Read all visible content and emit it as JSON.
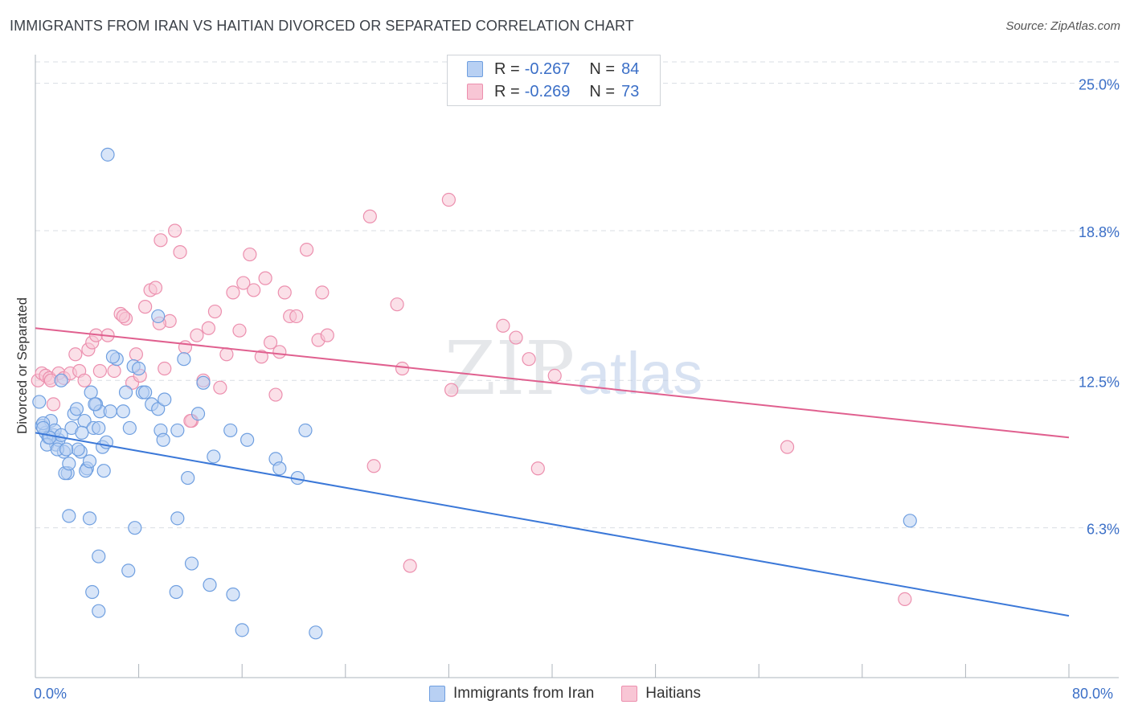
{
  "title": "IMMIGRANTS FROM IRAN VS HAITIAN DIVORCED OR SEPARATED CORRELATION CHART",
  "source": "Source: ZipAtlas.com",
  "watermark": {
    "zip": "ZIP",
    "atlas": "atlas"
  },
  "colors": {
    "blue": "#3b78d8",
    "blue_fill": "#b8d0f3",
    "blue_stroke": "#6f9fe0",
    "pink": "#e0608f",
    "pink_fill": "#f8c6d5",
    "pink_stroke": "#ec8fae",
    "axis_text": "#3b6fc7",
    "grid": "#d9dde3"
  },
  "legend_top": [
    {
      "r_label": "R =",
      "r_value": "-0.267",
      "n_label": "N =",
      "n_value": "84"
    },
    {
      "r_label": "R =",
      "r_value": "-0.269",
      "n_label": "N =",
      "n_value": "73"
    }
  ],
  "legend_bottom": [
    "Immigrants from Iran",
    "Haitians"
  ],
  "chart_data": {
    "type": "scatter",
    "title": "IMMIGRANTS FROM IRAN VS HAITIAN DIVORCED OR SEPARATED CORRELATION CHART",
    "xlabel": "",
    "ylabel": "Divorced or Separated",
    "xlim": [
      0,
      80
    ],
    "ylim": [
      0,
      25.9
    ],
    "x_tick_labels": [
      "0.0%",
      "80.0%"
    ],
    "y_ticks": [
      6.3,
      12.5,
      18.8,
      25.0
    ],
    "y_tick_labels": [
      "6.3%",
      "12.5%",
      "18.8%",
      "25.0%"
    ],
    "grid": true,
    "legend_position": "top-center",
    "series": [
      {
        "name": "Immigrants from Iran",
        "R": -0.267,
        "N": 84,
        "trend": {
          "x": [
            0,
            80
          ],
          "y": [
            10.3,
            2.6
          ]
        },
        "points": [
          [
            5.6,
            22
          ],
          [
            0.3,
            11.6
          ],
          [
            0.5,
            10.6
          ],
          [
            0.8,
            10.3
          ],
          [
            1.0,
            10.1
          ],
          [
            1.2,
            10.8
          ],
          [
            1.4,
            10.2
          ],
          [
            1.6,
            9.8
          ],
          [
            1.8,
            10.0
          ],
          [
            0.6,
            10.7
          ],
          [
            2.0,
            12.5
          ],
          [
            2.2,
            9.5
          ],
          [
            2.5,
            8.6
          ],
          [
            2.8,
            10.5
          ],
          [
            3.0,
            11.1
          ],
          [
            3.2,
            11.3
          ],
          [
            3.5,
            9.5
          ],
          [
            3.8,
            10.8
          ],
          [
            4.0,
            8.8
          ],
          [
            4.3,
            12.0
          ],
          [
            4.5,
            10.5
          ],
          [
            4.7,
            11.5
          ],
          [
            5.0,
            11.2
          ],
          [
            5.2,
            9.7
          ],
          [
            5.5,
            9.9
          ],
          [
            5.8,
            11.2
          ],
          [
            6.3,
            13.4
          ],
          [
            6.8,
            11.2
          ],
          [
            7.0,
            12.0
          ],
          [
            7.3,
            10.5
          ],
          [
            7.6,
            13.1
          ],
          [
            8.0,
            13.0
          ],
          [
            8.3,
            12.0
          ],
          [
            8.5,
            12.0
          ],
          [
            9.0,
            11.5
          ],
          [
            9.5,
            11.3
          ],
          [
            9.7,
            10.4
          ],
          [
            9.9,
            10.0
          ],
          [
            1.5,
            10.4
          ],
          [
            2.0,
            10.2
          ],
          [
            2.3,
            8.6
          ],
          [
            2.6,
            9.0
          ],
          [
            3.3,
            9.6
          ],
          [
            3.9,
            8.7
          ],
          [
            4.2,
            9.1
          ],
          [
            4.6,
            11.5
          ],
          [
            5.3,
            8.7
          ],
          [
            0.9,
            9.8
          ],
          [
            1.1,
            10.1
          ],
          [
            1.7,
            9.6
          ],
          [
            2.4,
            9.6
          ],
          [
            3.6,
            10.3
          ],
          [
            4.9,
            10.5
          ],
          [
            6.0,
            13.5
          ],
          [
            9.5,
            15.2
          ],
          [
            11.5,
            13.4
          ],
          [
            10.0,
            11.7
          ],
          [
            11.0,
            10.4
          ],
          [
            12.6,
            11.1
          ],
          [
            13.0,
            12.4
          ],
          [
            13.8,
            9.3
          ],
          [
            15.1,
            10.4
          ],
          [
            16.4,
            10.0
          ],
          [
            18.6,
            9.2
          ],
          [
            18.9,
            8.8
          ],
          [
            20.3,
            8.4
          ],
          [
            20.9,
            10.4
          ],
          [
            2.6,
            6.8
          ],
          [
            4.2,
            6.7
          ],
          [
            7.7,
            6.3
          ],
          [
            11.0,
            6.7
          ],
          [
            11.8,
            8.4
          ],
          [
            4.9,
            5.1
          ],
          [
            7.2,
            4.5
          ],
          [
            12.1,
            4.8
          ],
          [
            4.4,
            3.6
          ],
          [
            4.9,
            2.8
          ],
          [
            10.9,
            3.6
          ],
          [
            13.5,
            3.9
          ],
          [
            15.3,
            3.5
          ],
          [
            16.0,
            2.0
          ],
          [
            21.7,
            1.9
          ],
          [
            67.7,
            6.6
          ],
          [
            0.6,
            10.5
          ]
        ]
      },
      {
        "name": "Haitians",
        "R": -0.269,
        "N": 73,
        "trend": {
          "x": [
            0,
            80
          ],
          "y": [
            14.7,
            10.1
          ]
        },
        "points": [
          [
            0.2,
            12.5
          ],
          [
            0.5,
            12.8
          ],
          [
            0.8,
            12.7
          ],
          [
            1.1,
            12.6
          ],
          [
            1.4,
            11.5
          ],
          [
            1.8,
            12.8
          ],
          [
            2.2,
            12.6
          ],
          [
            2.7,
            12.8
          ],
          [
            3.1,
            13.6
          ],
          [
            3.4,
            12.9
          ],
          [
            3.8,
            12.5
          ],
          [
            4.1,
            13.8
          ],
          [
            4.4,
            14.1
          ],
          [
            4.7,
            14.4
          ],
          [
            5.0,
            12.9
          ],
          [
            5.6,
            14.4
          ],
          [
            6.1,
            12.9
          ],
          [
            6.6,
            15.3
          ],
          [
            7.0,
            15.1
          ],
          [
            7.5,
            12.4
          ],
          [
            7.8,
            13.6
          ],
          [
            8.1,
            12.7
          ],
          [
            8.5,
            15.6
          ],
          [
            8.9,
            16.3
          ],
          [
            9.3,
            16.4
          ],
          [
            9.7,
            18.4
          ],
          [
            10.0,
            13.0
          ],
          [
            10.4,
            15.0
          ],
          [
            10.8,
            18.8
          ],
          [
            11.2,
            17.9
          ],
          [
            11.6,
            13.9
          ],
          [
            12.1,
            10.8
          ],
          [
            12.5,
            14.4
          ],
          [
            13.0,
            12.5
          ],
          [
            13.4,
            14.7
          ],
          [
            13.9,
            15.4
          ],
          [
            14.3,
            12.2
          ],
          [
            14.8,
            13.6
          ],
          [
            15.3,
            16.2
          ],
          [
            15.8,
            14.6
          ],
          [
            16.1,
            16.6
          ],
          [
            16.6,
            17.8
          ],
          [
            16.9,
            16.3
          ],
          [
            17.5,
            13.5
          ],
          [
            17.8,
            16.8
          ],
          [
            18.2,
            14.1
          ],
          [
            18.6,
            11.9
          ],
          [
            18.9,
            13.7
          ],
          [
            19.3,
            16.2
          ],
          [
            19.7,
            15.2
          ],
          [
            20.2,
            15.2
          ],
          [
            21.0,
            18.0
          ],
          [
            21.9,
            14.2
          ],
          [
            22.2,
            16.2
          ],
          [
            22.6,
            14.4
          ],
          [
            25.9,
            19.4
          ],
          [
            28.0,
            15.7
          ],
          [
            28.4,
            13.0
          ],
          [
            32.0,
            20.1
          ],
          [
            32.2,
            12.1
          ],
          [
            36.2,
            14.8
          ],
          [
            37.2,
            14.3
          ],
          [
            38.2,
            13.4
          ],
          [
            40.2,
            12.7
          ],
          [
            26.2,
            8.9
          ],
          [
            38.9,
            8.8
          ],
          [
            58.2,
            9.7
          ],
          [
            29.0,
            4.7
          ],
          [
            67.3,
            3.3
          ],
          [
            1.2,
            12.5
          ],
          [
            6.8,
            15.2
          ],
          [
            9.6,
            14.9
          ],
          [
            12.0,
            10.8
          ]
        ]
      }
    ]
  }
}
